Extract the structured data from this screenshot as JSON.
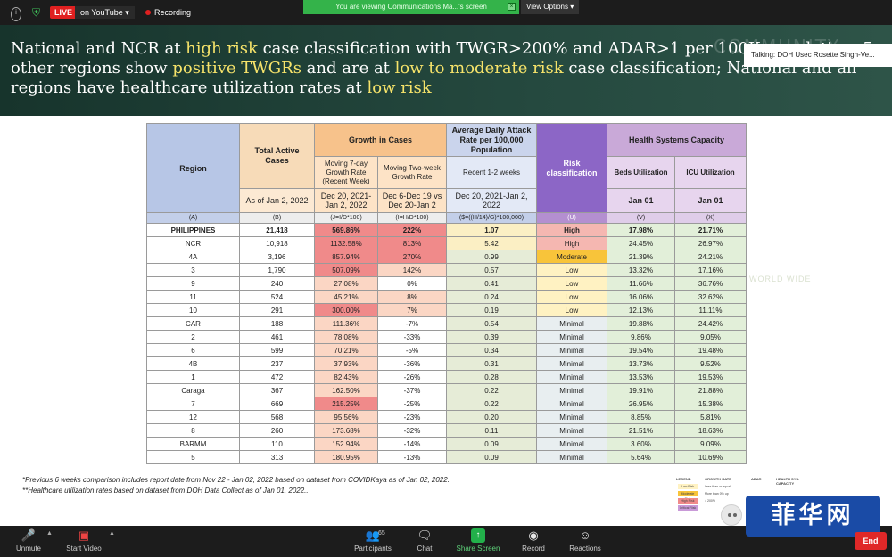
{
  "topbar": {
    "live": "LIVE",
    "destination": "on YouTube",
    "recording": "Recording",
    "viewing": "You are viewing Communications Ma...'s screen",
    "view_options": "View Options",
    "talking": "Talking: DOH Usec Rosette Singh-Ve..."
  },
  "slide": {
    "headline": [
      {
        "t": "National and NCR at ",
        "hl": false
      },
      {
        "t": "high risk",
        "hl": true
      },
      {
        "t": " case classification with TWGR>200% and ADAR>1 per 100K population; 5 other regions show ",
        "hl": false
      },
      {
        "t": "positive TWGRs",
        "hl": true
      },
      {
        "t": " and are at ",
        "hl": false
      },
      {
        "t": "low to moderate risk",
        "hl": true
      },
      {
        "t": " case classification; National and all regions have healthcare utilization rates at ",
        "hl": false
      },
      {
        "t": "low risk",
        "hl": true
      }
    ]
  },
  "table": {
    "headers": {
      "region": "Region",
      "total": "Total Active Cases",
      "growth": "Growth in Cases",
      "adar": "Average Daily Attack Rate per 100,000 Population",
      "risk": "Risk classification",
      "health": "Health Systems Capacity",
      "mov7": "Moving 7-day Growth Rate (Recent Week)",
      "mov2": "Moving Two-week Growth Rate",
      "recent": "Recent 1-2 weeks",
      "beds": "Beds Utilization",
      "icu": "ICU Utilization",
      "as_of": "As of Jan 2, 2022",
      "mov7_date": "Dec 20, 2021-Jan 2, 2022",
      "mov2_date": "Dec 6-Dec 19 vs Dec 20-Jan 2",
      "adar_date": "Dec 20, 2021-Jan 2, 2022",
      "beds_date": "Jan 01",
      "icu_date": "Jan 01"
    },
    "letters": [
      "(A)",
      "(B)",
      "(J=I/D*100)",
      "(I=H/D*100)",
      "($=((H/14)/G)*100,000)",
      "(U)",
      "(V)",
      "(X)"
    ],
    "rows": [
      {
        "region": "PHILIPPINES",
        "total": "21,418",
        "g7": "569.86%",
        "g2": "222%",
        "adar": "1.07",
        "risk": "High",
        "beds": "17.98%",
        "icu": "21.71%"
      },
      {
        "region": "NCR",
        "total": "10,918",
        "g7": "1132.58%",
        "g2": "813%",
        "adar": "5.42",
        "risk": "High",
        "beds": "24.45%",
        "icu": "26.97%"
      },
      {
        "region": "4A",
        "total": "3,196",
        "g7": "857.94%",
        "g2": "270%",
        "adar": "0.99",
        "risk": "Moderate",
        "beds": "21.39%",
        "icu": "24.21%"
      },
      {
        "region": "3",
        "total": "1,790",
        "g7": "507.09%",
        "g2": "142%",
        "adar": "0.57",
        "risk": "Low",
        "beds": "13.32%",
        "icu": "17.16%"
      },
      {
        "region": "9",
        "total": "240",
        "g7": "27.08%",
        "g2": "0%",
        "adar": "0.41",
        "risk": "Low",
        "beds": "11.66%",
        "icu": "36.76%"
      },
      {
        "region": "11",
        "total": "524",
        "g7": "45.21%",
        "g2": "8%",
        "adar": "0.24",
        "risk": "Low",
        "beds": "16.06%",
        "icu": "32.62%"
      },
      {
        "region": "10",
        "total": "291",
        "g7": "300.00%",
        "g2": "7%",
        "adar": "0.19",
        "risk": "Low",
        "beds": "12.13%",
        "icu": "11.11%"
      },
      {
        "region": "CAR",
        "total": "188",
        "g7": "111.36%",
        "g2": "-7%",
        "adar": "0.54",
        "risk": "Minimal",
        "beds": "19.88%",
        "icu": "24.42%"
      },
      {
        "region": "2",
        "total": "461",
        "g7": "78.08%",
        "g2": "-33%",
        "adar": "0.39",
        "risk": "Minimal",
        "beds": "9.86%",
        "icu": "9.05%"
      },
      {
        "region": "6",
        "total": "599",
        "g7": "70.21%",
        "g2": "-5%",
        "adar": "0.34",
        "risk": "Minimal",
        "beds": "19.54%",
        "icu": "19.48%"
      },
      {
        "region": "4B",
        "total": "237",
        "g7": "37.93%",
        "g2": "-36%",
        "adar": "0.31",
        "risk": "Minimal",
        "beds": "13.73%",
        "icu": "9.52%"
      },
      {
        "region": "1",
        "total": "472",
        "g7": "82.43%",
        "g2": "-26%",
        "adar": "0.28",
        "risk": "Minimal",
        "beds": "13.53%",
        "icu": "19.53%"
      },
      {
        "region": "Caraga",
        "total": "367",
        "g7": "162.50%",
        "g2": "-37%",
        "adar": "0.22",
        "risk": "Minimal",
        "beds": "19.91%",
        "icu": "21.88%"
      },
      {
        "region": "7",
        "total": "669",
        "g7": "215.25%",
        "g2": "-25%",
        "adar": "0.22",
        "risk": "Minimal",
        "beds": "26.95%",
        "icu": "15.38%"
      },
      {
        "region": "12",
        "total": "568",
        "g7": "95.56%",
        "g2": "-23%",
        "adar": "0.20",
        "risk": "Minimal",
        "beds": "8.85%",
        "icu": "5.81%"
      },
      {
        "region": "8",
        "total": "260",
        "g7": "173.68%",
        "g2": "-32%",
        "adar": "0.11",
        "risk": "Minimal",
        "beds": "21.51%",
        "icu": "18.63%"
      },
      {
        "region": "BARMM",
        "total": "110",
        "g7": "152.94%",
        "g2": "-14%",
        "adar": "0.09",
        "risk": "Minimal",
        "beds": "3.60%",
        "icu": "9.09%"
      },
      {
        "region": "5",
        "total": "313",
        "g7": "180.95%",
        "g2": "-13%",
        "adar": "0.09",
        "risk": "Minimal",
        "beds": "5.64%",
        "icu": "10.69%"
      }
    ]
  },
  "footnotes": {
    "fn1": "*Previous 6 weeks comparison includes report date from Nov 22 - Jan 02, 2022 based on dataset from COVIDKaya as of Jan 02, 2022.",
    "fn2": "**Healthcare utilization rates based on dataset from DOH Data Collect as of Jan 01, 2022.."
  },
  "legend": {
    "h1": "LEGEND",
    "h2": "GROWTH RATE",
    "h3": "ADAR",
    "h4": "HEALTH SYS. CAPACITY",
    "low": "Low Risk",
    "moderate": "Moderate Risk",
    "high": "High Risk",
    "critical": "Critical Risk",
    "g1": "Less than or equal",
    "g2": "More than 0% up",
    "g3": "> 200%"
  },
  "brand": "菲华网",
  "ghost": "WORLD WIDE",
  "toolbar": {
    "unmute": "Unmute",
    "start_video": "Start Video",
    "participants": "Participants",
    "participants_count": "65",
    "chat": "Chat",
    "share": "Share Screen",
    "record": "Record",
    "reactions": "Reactions",
    "end": "End"
  },
  "colors": {
    "header_bg": "#1d3a33",
    "highlight": "#f6e36a",
    "high_growth": "#f08a8a",
    "moderate": "#f8c43a",
    "share_green": "#22b04a",
    "live_red": "#e02020"
  }
}
